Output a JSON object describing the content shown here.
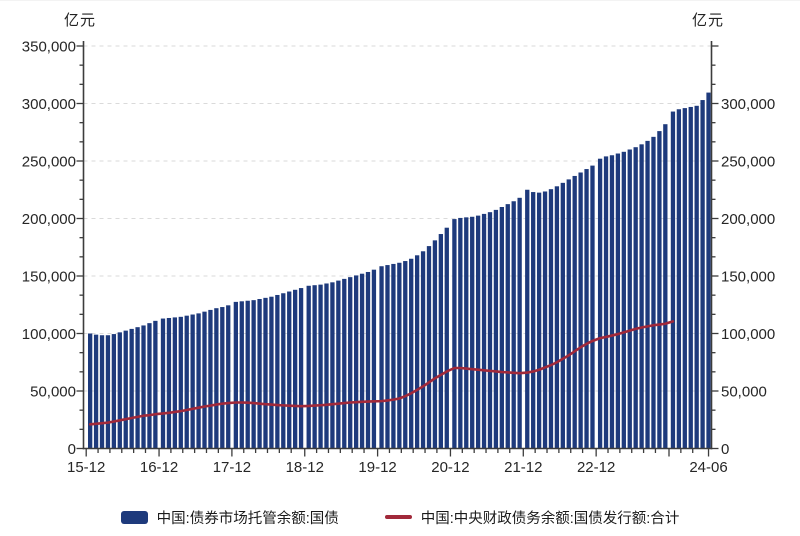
{
  "axes": {
    "left_unit": "亿元",
    "right_unit": "亿元"
  },
  "legend": {
    "items": [
      {
        "swatch": "bar-swatch",
        "color": "#1e3a7c"
      },
      {
        "swatch": "line-swatch",
        "color": "#a1293a"
      }
    ]
  },
  "chart_data": {
    "type": "bar",
    "combo": "bar+line",
    "unit": "亿元",
    "x_start": "2015-12",
    "x_frequency": "monthly",
    "x_tick_labels": [
      "15-12",
      "16-12",
      "17-12",
      "18-12",
      "19-12",
      "20-12",
      "21-12",
      "22-12",
      "24-06"
    ],
    "x_tick_months": [
      0,
      12,
      24,
      36,
      48,
      60,
      72,
      84,
      102
    ],
    "x_major_unlabeled_months": [
      96
    ],
    "x_minor_step_months": 2,
    "grid": "horizontal-dashed",
    "grid_color": "#dadada",
    "axis_color": "#3c3c3c",
    "label_color": "#262626",
    "y_axis_left": {
      "range": [
        0,
        350000
      ],
      "tick_values": [
        0,
        50000,
        100000,
        150000,
        200000,
        250000,
        300000,
        350000
      ],
      "tick_labels": [
        "0",
        "50,000",
        "100,000",
        "150,000",
        "200,000",
        "250,000",
        "300,000",
        "350,000"
      ]
    },
    "y_axis_right": {
      "range": [
        0,
        350000
      ],
      "tick_values": [
        0,
        50000,
        100000,
        150000,
        200000,
        250000,
        300000
      ],
      "tick_labels": [
        "0",
        "50,000",
        "100,000",
        "150,000",
        "200,000",
        "250,000",
        "300,000"
      ]
    },
    "series": [
      {
        "name": "中国:债券市场托管余额:国债",
        "type": "bar",
        "color": "#1e3a7c",
        "start_month": "2015-12",
        "values": [
          100000,
          99000,
          98500,
          98500,
          99500,
          101000,
          102500,
          104000,
          105500,
          107000,
          109000,
          111000,
          113000,
          113500,
          114000,
          114500,
          115500,
          116500,
          117500,
          119000,
          120500,
          122000,
          123000,
          124500,
          127500,
          128000,
          128500,
          129000,
          130000,
          131000,
          132000,
          133500,
          135000,
          136500,
          138000,
          139500,
          141500,
          142000,
          142500,
          143500,
          144500,
          146000,
          147500,
          149000,
          150500,
          152000,
          153500,
          155500,
          158500,
          159500,
          160500,
          161500,
          163000,
          165000,
          168000,
          171500,
          176000,
          181000,
          186500,
          192000,
          199500,
          200500,
          201000,
          201500,
          202500,
          204000,
          205500,
          207500,
          210000,
          212500,
          215000,
          218000,
          225000,
          223000,
          222500,
          223500,
          225500,
          228000,
          231000,
          234000,
          237000,
          240000,
          243000,
          246000,
          252000,
          254000,
          255000,
          256500,
          258000,
          260000,
          262000,
          264500,
          267500,
          271000,
          276000,
          282000,
          293000,
          295000,
          296000,
          297000,
          298000,
          303000,
          309500
        ]
      },
      {
        "name": "中国:中央财政债务余额:国债发行额:合计",
        "type": "line",
        "color": "#a1293a",
        "start_month": "2015-12",
        "end_month": "2023-12",
        "values": [
          21000,
          21500,
          22000,
          22500,
          23500,
          24500,
          25500,
          26500,
          27500,
          28500,
          29000,
          29800,
          30500,
          31000,
          31800,
          32500,
          33500,
          34500,
          35500,
          36500,
          37300,
          38200,
          39000,
          39500,
          40000,
          40000,
          39800,
          39500,
          39000,
          38500,
          38200,
          37800,
          37500,
          37200,
          37000,
          36800,
          37000,
          37300,
          37600,
          38000,
          38500,
          39000,
          39500,
          40000,
          40300,
          40600,
          40800,
          41000,
          41200,
          41800,
          42500,
          43500,
          45500,
          48000,
          51000,
          54000,
          57500,
          61000,
          64000,
          67000,
          70000,
          70000,
          69500,
          69000,
          68500,
          68000,
          67500,
          67000,
          66500,
          66200,
          65800,
          65500,
          66000,
          67000,
          68500,
          70500,
          72500,
          75000,
          78000,
          81000,
          84500,
          88000,
          91000,
          93500,
          96000,
          97000,
          98200,
          99500,
          101000,
          102500,
          104000,
          105200,
          106200,
          107200,
          107800,
          108500,
          110500
        ]
      }
    ]
  }
}
